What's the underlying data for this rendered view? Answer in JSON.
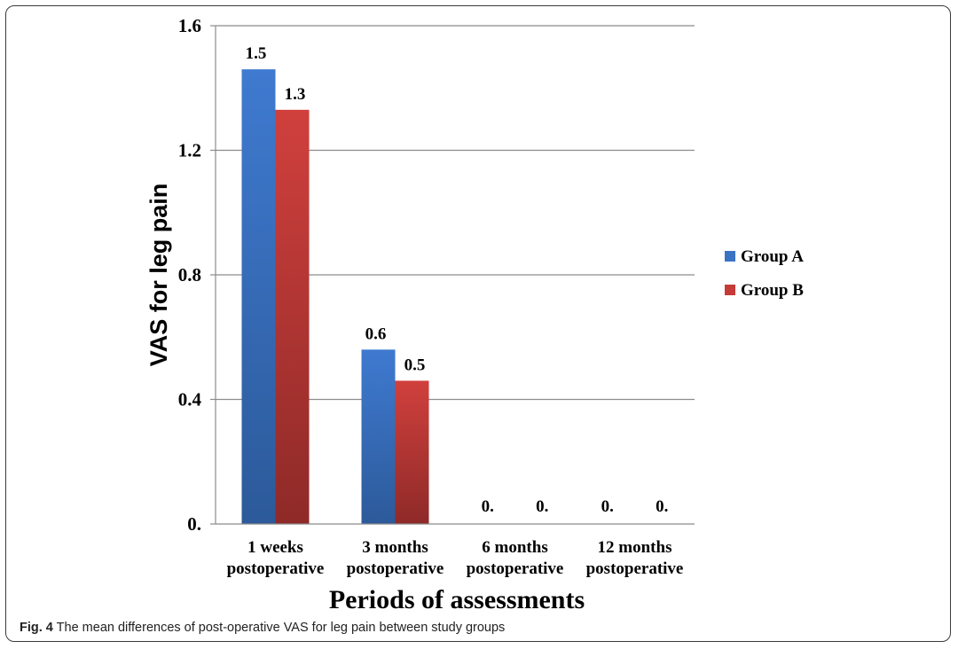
{
  "chart_data": {
    "type": "bar",
    "xlabel": "Periods of assessments",
    "ylabel": "VAS for leg pain",
    "ylim": [
      0,
      1.6
    ],
    "yticks": [
      "0.",
      "0.4",
      "0.8",
      "1.2",
      "1.6"
    ],
    "categories": [
      [
        "1 weeks",
        "postoperative"
      ],
      [
        "3 months",
        "postoperative"
      ],
      [
        "6 months",
        "postoperative"
      ],
      [
        "12 months",
        "postoperative"
      ]
    ],
    "series": [
      {
        "name": "Group A",
        "color": "#3b73c4",
        "values": [
          1.46,
          0.56,
          0,
          0
        ],
        "labels": [
          "1.5",
          "0.6",
          "0.",
          "0."
        ]
      },
      {
        "name": "Group B",
        "color": "#c43b38",
        "values": [
          1.33,
          0.46,
          0,
          0
        ],
        "labels": [
          "1.3",
          "0.5",
          "0.",
          "0."
        ]
      }
    ],
    "grid": true,
    "legend": "right"
  },
  "caption": {
    "label": "Fig. 4",
    "text": "The mean differences of post-operative VAS for leg pain between study groups"
  }
}
